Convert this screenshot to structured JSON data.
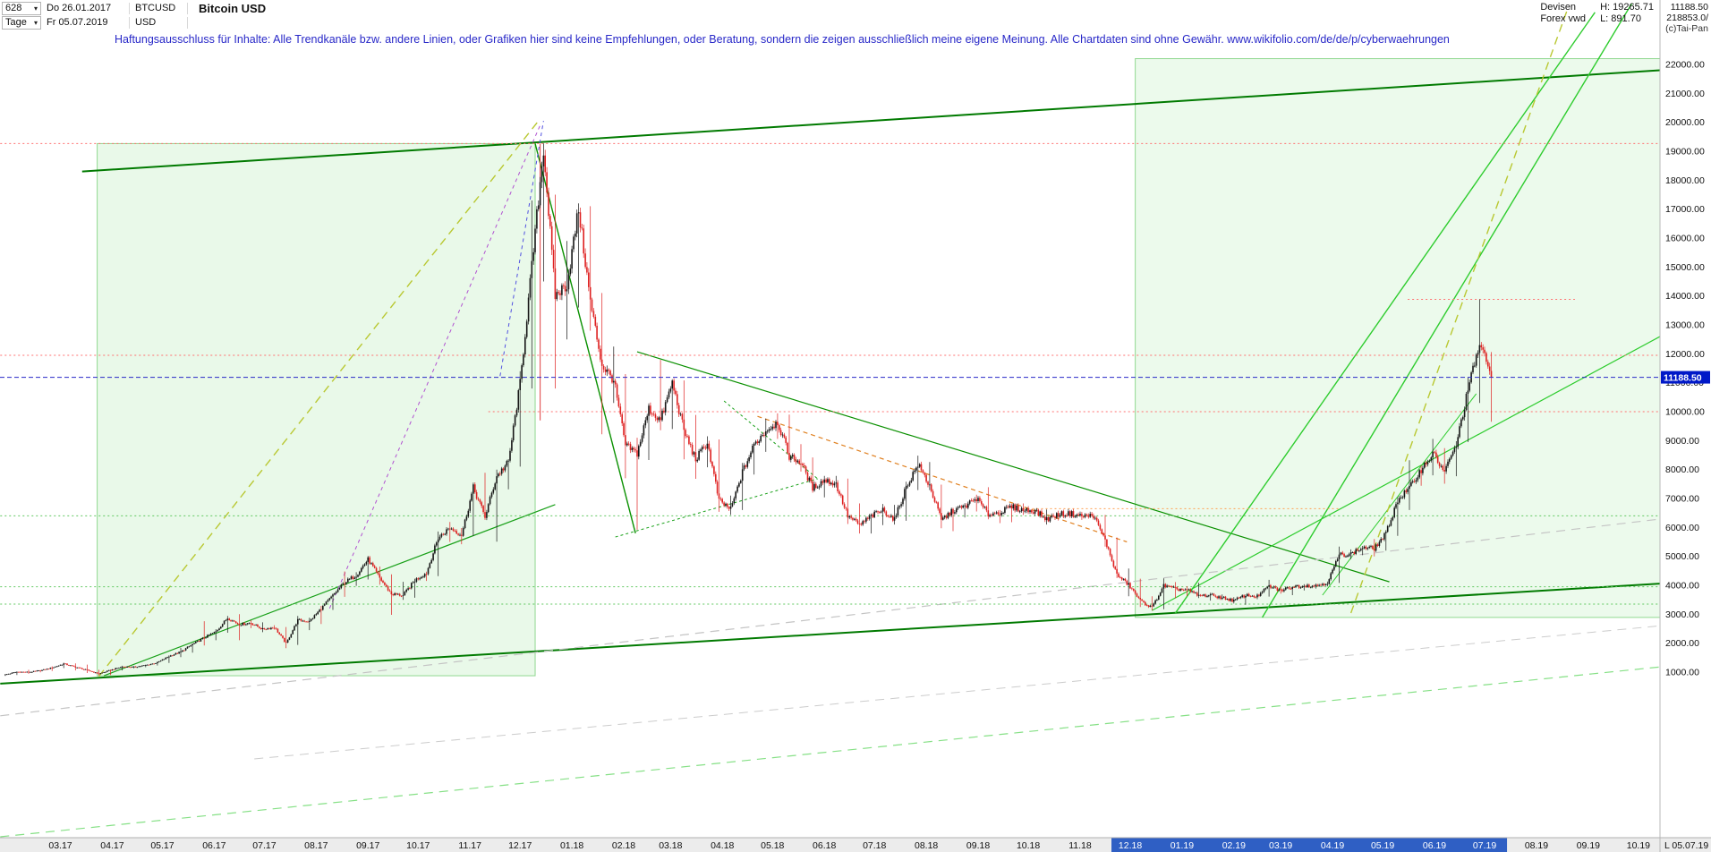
{
  "header": {
    "bars_count": "628",
    "period_label": "Tage",
    "date_from": "Do 26.01.2017",
    "date_to": "Fr 05.07.2019",
    "symbol": "BTCUSD",
    "currency": "USD",
    "title": "Bitcoin USD",
    "exchange": "Devisen",
    "feed": "Forex vwd",
    "high_label": "H: 19265.71",
    "low_label": "L: 891.70",
    "last_price": "11188.50",
    "volume": "218853.0/",
    "copyright": "(c)Tai-Pan"
  },
  "disclaimer": "Haftungsausschluss für Inhalte: Alle Trendkanäle bzw. andere Linien, oder Grafiken hier sind keine Empfehlungen, oder Beratung, sondern die zeigen ausschließlich meine eigene Meinung. Alle Chartdaten sind ohne Gewähr.  www.wikifolio.com/de/de/p/cyberwaehrungen",
  "chart_data": {
    "type": "candlestick",
    "title": "Bitcoin USD",
    "symbol": "BTCUSD",
    "x_epoch": "2017-01-26",
    "period_high": 19265.71,
    "period_low": 891.7,
    "y_max": 22000,
    "y_step": 1000,
    "y_ticks": [
      "22000.00",
      "21000.00",
      "20000.00",
      "19000.00",
      "18000.00",
      "17000.00",
      "16000.00",
      "15000.00",
      "14000.00",
      "13000.00",
      "12000.00",
      "11000.00",
      "10000.00",
      "9000.00",
      "8000.00",
      "7000.00",
      "6000.00",
      "5000.00",
      "4000.00",
      "3000.00",
      "2000.00",
      "1000.00"
    ],
    "current_price": 11188.5,
    "current_price_label": "11188.50",
    "current_price_line": {
      "color": "#2828c8",
      "dash": "5,3"
    },
    "end_tick_label": "L 05.07.19",
    "colors": {
      "up": "#161616",
      "down": "#de2020",
      "tag_bg": "#0018c8",
      "tag_text": "#ffffff",
      "selection": "#2f5fc4",
      "strip": "#ececec",
      "axis_text": "#101010"
    },
    "month_ticks": [
      {
        "l": "03.17",
        "d": 34,
        "hl": false
      },
      {
        "l": "04.17",
        "d": 65,
        "hl": false
      },
      {
        "l": "05.17",
        "d": 95,
        "hl": false
      },
      {
        "l": "06.17",
        "d": 126,
        "hl": false
      },
      {
        "l": "07.17",
        "d": 156,
        "hl": false
      },
      {
        "l": "08.17",
        "d": 187,
        "hl": false
      },
      {
        "l": "09.17",
        "d": 218,
        "hl": false
      },
      {
        "l": "10.17",
        "d": 248,
        "hl": false
      },
      {
        "l": "11.17",
        "d": 279,
        "hl": false
      },
      {
        "l": "12.17",
        "d": 309,
        "hl": false
      },
      {
        "l": "01.18",
        "d": 340,
        "hl": false
      },
      {
        "l": "02.18",
        "d": 371,
        "hl": false
      },
      {
        "l": "03.18",
        "d": 399,
        "hl": false
      },
      {
        "l": "04.18",
        "d": 430,
        "hl": false
      },
      {
        "l": "05.18",
        "d": 460,
        "hl": false
      },
      {
        "l": "06.18",
        "d": 491,
        "hl": false
      },
      {
        "l": "07.18",
        "d": 521,
        "hl": false
      },
      {
        "l": "08.18",
        "d": 552,
        "hl": false
      },
      {
        "l": "09.18",
        "d": 583,
        "hl": false
      },
      {
        "l": "10.18",
        "d": 613,
        "hl": false
      },
      {
        "l": "11.18",
        "d": 644,
        "hl": false
      },
      {
        "l": "12.18",
        "d": 674,
        "hl": true
      },
      {
        "l": "01.19",
        "d": 705,
        "hl": true
      },
      {
        "l": "02.19",
        "d": 736,
        "hl": true
      },
      {
        "l": "03.19",
        "d": 764,
        "hl": true
      },
      {
        "l": "04.19",
        "d": 795,
        "hl": true
      },
      {
        "l": "05.19",
        "d": 825,
        "hl": true
      },
      {
        "l": "06.19",
        "d": 856,
        "hl": true
      },
      {
        "l": "07.19",
        "d": 886,
        "hl": true
      },
      {
        "l": "08.19",
        "d": 917,
        "hl": false
      },
      {
        "l": "09.19",
        "d": 948,
        "hl": false
      },
      {
        "l": "10.19",
        "d": 978,
        "hl": false
      }
    ],
    "weeks": [
      [
        1,
        915,
        925,
        870
      ],
      [
        8,
        1010,
        1025,
        900
      ],
      [
        15,
        1000,
        1080,
        940
      ],
      [
        22,
        1055,
        1065,
        990
      ],
      [
        29,
        1150,
        1200,
        1040
      ],
      [
        36,
        1290,
        1325,
        1140
      ],
      [
        43,
        1175,
        1300,
        1060
      ],
      [
        50,
        1070,
        1260,
        970
      ],
      [
        57,
        940,
        1080,
        892
      ],
      [
        64,
        1070,
        1090,
        900
      ],
      [
        71,
        1190,
        1220,
        1060
      ],
      [
        78,
        1175,
        1210,
        1130
      ],
      [
        85,
        1240,
        1260,
        1170
      ],
      [
        92,
        1330,
        1350,
        1230
      ],
      [
        99,
        1550,
        1580,
        1320
      ],
      [
        106,
        1700,
        1840,
        1520
      ],
      [
        113,
        1960,
        1980,
        1670
      ],
      [
        120,
        2190,
        2760,
        1920
      ],
      [
        127,
        2400,
        2480,
        2100
      ],
      [
        134,
        2870,
        2940,
        2360
      ],
      [
        141,
        2650,
        3000,
        2100
      ],
      [
        148,
        2700,
        2790,
        2520
      ],
      [
        155,
        2480,
        2720,
        2380
      ],
      [
        162,
        2550,
        2620,
        2470
      ],
      [
        169,
        1990,
        2560,
        1830
      ],
      [
        176,
        2800,
        2940,
        1940
      ],
      [
        183,
        2750,
        2880,
        2450
      ],
      [
        190,
        3200,
        3290,
        2660
      ],
      [
        197,
        3650,
        3700,
        3150
      ],
      [
        204,
        4100,
        4480,
        3600
      ],
      [
        211,
        4350,
        4450,
        3980
      ],
      [
        218,
        4900,
        4980,
        4200
      ],
      [
        225,
        4250,
        4650,
        4020
      ],
      [
        232,
        3700,
        4380,
        2980
      ],
      [
        239,
        3650,
        4120,
        3500
      ],
      [
        246,
        4170,
        4230,
        3570
      ],
      [
        253,
        4430,
        4470,
        4150
      ],
      [
        260,
        5640,
        5860,
        4320
      ],
      [
        267,
        5990,
        6190,
        5500
      ],
      [
        274,
        5750,
        5980,
        5420
      ],
      [
        281,
        7370,
        7500,
        5700
      ],
      [
        288,
        6370,
        7890,
        6300
      ],
      [
        295,
        7780,
        8000,
        5510
      ],
      [
        302,
        8250,
        8350,
        7320
      ],
      [
        309,
        10980,
        11400,
        8100
      ],
      [
        316,
        15000,
        17300,
        10800
      ],
      [
        323,
        19100,
        19270,
        14500
      ],
      [
        330,
        14000,
        17500,
        10800
      ],
      [
        337,
        14400,
        15900,
        12500
      ],
      [
        344,
        17000,
        17200,
        13600
      ],
      [
        351,
        13800,
        17100,
        12800
      ],
      [
        358,
        11600,
        14100,
        9220
      ],
      [
        365,
        11100,
        12250,
        10300
      ],
      [
        372,
        8830,
        11300,
        7700
      ],
      [
        379,
        8560,
        9100,
        5920
      ],
      [
        386,
        10100,
        10230,
        8330
      ],
      [
        393,
        9700,
        11790,
        9360
      ],
      [
        400,
        11000,
        11100,
        9400
      ],
      [
        407,
        9350,
        11080,
        8350
      ],
      [
        414,
        8350,
        9890,
        7680
      ],
      [
        421,
        8930,
        9150,
        8080
      ],
      [
        428,
        6920,
        9040,
        6540
      ],
      [
        435,
        6630,
        7100,
        6430
      ],
      [
        442,
        7900,
        8230,
        6600
      ],
      [
        449,
        8860,
        8940,
        7830
      ],
      [
        456,
        9350,
        9760,
        8610
      ],
      [
        463,
        9650,
        9940,
        9060
      ],
      [
        470,
        8460,
        9900,
        8340
      ],
      [
        477,
        8250,
        8880,
        7930
      ],
      [
        484,
        7360,
        8420,
        7240
      ],
      [
        491,
        7640,
        7780,
        7040
      ],
      [
        498,
        7500,
        7780,
        7380
      ],
      [
        505,
        6400,
        7690,
        6120
      ],
      [
        512,
        6080,
        6830,
        5790
      ],
      [
        519,
        6390,
        6480,
        5790
      ],
      [
        526,
        6600,
        6810,
        6080
      ],
      [
        533,
        6270,
        6780,
        6100
      ],
      [
        540,
        7400,
        7580,
        6230
      ],
      [
        547,
        8180,
        8480,
        7290
      ],
      [
        554,
        7440,
        8260,
        7290
      ],
      [
        561,
        6250,
        7480,
        5970
      ],
      [
        568,
        6580,
        6620,
        5870
      ],
      [
        575,
        6720,
        6840,
        6340
      ],
      [
        582,
        7010,
        7130,
        6550
      ],
      [
        589,
        6450,
        7390,
        6280
      ],
      [
        596,
        6520,
        6600,
        6150
      ],
      [
        603,
        6710,
        6770,
        6180
      ],
      [
        610,
        6600,
        6830,
        6430
      ],
      [
        617,
        6580,
        6640,
        6430
      ],
      [
        624,
        6280,
        6620,
        6100
      ],
      [
        631,
        6450,
        6580,
        6240
      ],
      [
        638,
        6480,
        6550,
        6350
      ],
      [
        645,
        6390,
        6540,
        6260
      ],
      [
        652,
        6410,
        6480,
        6300
      ],
      [
        659,
        5550,
        6430,
        5340
      ],
      [
        666,
        4360,
        5650,
        4250
      ],
      [
        673,
        4020,
        4580,
        3620
      ],
      [
        680,
        3470,
        4230,
        3250
      ],
      [
        687,
        3230,
        3620,
        3130
      ],
      [
        694,
        3990,
        4240,
        3170
      ],
      [
        701,
        3870,
        4110,
        3550
      ],
      [
        708,
        3840,
        3970,
        3630
      ],
      [
        715,
        3640,
        4090,
        3560
      ],
      [
        722,
        3660,
        3740,
        3470
      ],
      [
        729,
        3570,
        3680,
        3500
      ],
      [
        736,
        3470,
        3590,
        3370
      ],
      [
        743,
        3660,
        3680,
        3330
      ],
      [
        750,
        3620,
        3700,
        3520
      ],
      [
        757,
        3970,
        4190,
        3610
      ],
      [
        764,
        3820,
        3960,
        3710
      ],
      [
        771,
        3950,
        3970,
        3660
      ],
      [
        778,
        4000,
        4040,
        3820
      ],
      [
        785,
        3980,
        4060,
        3890
      ],
      [
        792,
        4100,
        4130,
        3960
      ],
      [
        799,
        5050,
        5340,
        4080
      ],
      [
        806,
        5090,
        5240,
        4910
      ],
      [
        813,
        5300,
        5360,
        5040
      ],
      [
        820,
        5270,
        5600,
        5000
      ],
      [
        827,
        5790,
        5850,
        5200
      ],
      [
        834,
        6950,
        7040,
        5710
      ],
      [
        841,
        7350,
        8320,
        6600
      ],
      [
        848,
        8000,
        8140,
        7440
      ],
      [
        855,
        8560,
        9060,
        7800
      ],
      [
        862,
        7920,
        8740,
        7510
      ],
      [
        869,
        8840,
        8980,
        7770
      ],
      [
        876,
        10750,
        11200,
        8950
      ],
      [
        883,
        12350,
        13880,
        10300
      ],
      [
        890,
        11188.5,
        12060,
        9650
      ]
    ],
    "overlays": {
      "lines": [
        {
          "name": "upper-trend-channel",
          "d1": 47,
          "p1": 18300,
          "d2": 991,
          "p2": 21800,
          "color": "#007a00",
          "width": 2,
          "dash": null
        },
        {
          "name": "lower-trend-channel",
          "d1": -2,
          "p1": 600,
          "d2": 991,
          "p2": 4060,
          "color": "#007a00",
          "width": 2,
          "dash": null
        },
        {
          "name": "peak-decline-line",
          "d1": 318,
          "p1": 19265,
          "d2": 378,
          "p2": 5800,
          "color": "#0a9000",
          "width": 1.4,
          "dash": null
        },
        {
          "name": "downtrend-2018-line",
          "d1": 379,
          "p1": 12070,
          "d2": 829,
          "p2": 4120,
          "color": "#0a9000",
          "width": 1.2,
          "dash": null
        },
        {
          "name": "support-2017-line",
          "d1": 60,
          "p1": 875,
          "d2": 330,
          "p2": 6790,
          "color": "#18a018",
          "width": 1.2,
          "dash": null
        },
        {
          "name": "support-2019-line",
          "d1": 687,
          "p1": 3130,
          "d2": 991,
          "p2": 12600,
          "color": "#2ecc2e",
          "width": 1.2,
          "dash": null
        },
        {
          "name": "fan-line-1",
          "d1": 701,
          "p1": 3040,
          "d2": 952,
          "p2": 23800,
          "color": "#2ecc2e",
          "width": 1.4,
          "dash": null
        },
        {
          "name": "fan-line-2",
          "d1": 753,
          "p1": 2890,
          "d2": 975,
          "p2": 24200,
          "color": "#2ecc2e",
          "width": 1.4,
          "dash": null
        },
        {
          "name": "fan-line-3",
          "d1": 789,
          "p1": 3660,
          "d2": 881,
          "p2": 10620,
          "color": "#2ecc2e",
          "width": 1,
          "dash": null
        },
        {
          "name": "dashed-rally-2017",
          "d1": 57,
          "p1": 855,
          "d2": 320,
          "p2": 20050,
          "color": "#b9c832",
          "width": 1.4,
          "dash": "9,6"
        },
        {
          "name": "dashed-rally-2019",
          "d1": 806,
          "p1": 3040,
          "d2": 936,
          "p2": 23980,
          "color": "#b9c832",
          "width": 1.4,
          "dash": "9,6"
        },
        {
          "name": "dashed-bottom-line",
          "d1": -2,
          "p1": -4690,
          "d2": 991,
          "p2": 1180,
          "color": "#86e086",
          "width": 1.2,
          "dash": "10,7"
        },
        {
          "name": "dashed-gray-line-1",
          "d1": -2,
          "p1": -510,
          "d2": 991,
          "p2": 6290,
          "color": "#c4c4c4",
          "width": 1.2,
          "dash": "10,7"
        },
        {
          "name": "dashed-gray-line-2",
          "d1": 150,
          "p1": -2000,
          "d2": 991,
          "p2": 2600,
          "color": "#cccccc",
          "width": 1,
          "dash": "10,7"
        },
        {
          "name": "dashed-blue-peak",
          "d1": 297,
          "p1": 11230,
          "d2": 323,
          "p2": 20050,
          "color": "#5050e0",
          "width": 1,
          "dash": "4,4"
        },
        {
          "name": "dashed-violet-rally",
          "d1": 195,
          "p1": 3200,
          "d2": 321,
          "p2": 19900,
          "color": "#b050d0",
          "width": 1,
          "dash": "4,4"
        },
        {
          "name": "orange-downtrend",
          "d1": 451,
          "p1": 9840,
          "d2": 672,
          "p2": 5500,
          "color": "#e08020",
          "width": 1.2,
          "dash": "5,4"
        },
        {
          "name": "triangle-upper",
          "d1": 431,
          "p1": 10370,
          "d2": 487,
          "p2": 7680,
          "color": "#18a018",
          "width": 1,
          "dash": "3,3"
        },
        {
          "name": "triangle-lower",
          "d1": 366,
          "p1": 5670,
          "d2": 487,
          "p2": 7680,
          "color": "#18a018",
          "width": 1,
          "dash": "3,3"
        }
      ],
      "hlines": [
        {
          "p": 19265,
          "d1": -2,
          "d2": 991,
          "color": "#ff7070",
          "dash": "2,3"
        },
        {
          "p": 11950,
          "d1": -2,
          "d2": 991,
          "color": "#ff7070",
          "dash": "2,3"
        },
        {
          "p": 10000,
          "d1": 290,
          "d2": 991,
          "color": "#ff7070",
          "dash": "2,3"
        },
        {
          "p": 13880,
          "d1": 840,
          "d2": 940,
          "color": "#ff7070",
          "dash": "2,3"
        },
        {
          "p": 6650,
          "d1": 610,
          "d2": 800,
          "color": "#ffa050",
          "dash": "2,3"
        },
        {
          "p": 6400,
          "d1": -2,
          "d2": 991,
          "color": "#60c860",
          "dash": "2,3"
        },
        {
          "p": 3950,
          "d1": -2,
          "d2": 991,
          "color": "#60c860",
          "dash": "2,3"
        },
        {
          "p": 3350,
          "d1": -2,
          "d2": 991,
          "color": "#60c860",
          "dash": "2,3"
        }
      ],
      "vlines": [
        {
          "d": 321,
          "p1": 19265,
          "p2": 9700,
          "color": "#e04040",
          "width": 1
        }
      ],
      "regions": [
        {
          "name": "bull-2017-zone",
          "d1": 56,
          "d2": 318,
          "p1": 875,
          "p2": 19265,
          "fill": "rgba(120,220,120,0.16)",
          "stroke": "#90d890"
        },
        {
          "name": "recovery-2019-zone",
          "d1": 677,
          "d2": 991,
          "p1": 2890,
          "p2": 22200,
          "fill": "rgba(120,220,120,0.14)",
          "stroke": "#90d890"
        }
      ]
    }
  }
}
